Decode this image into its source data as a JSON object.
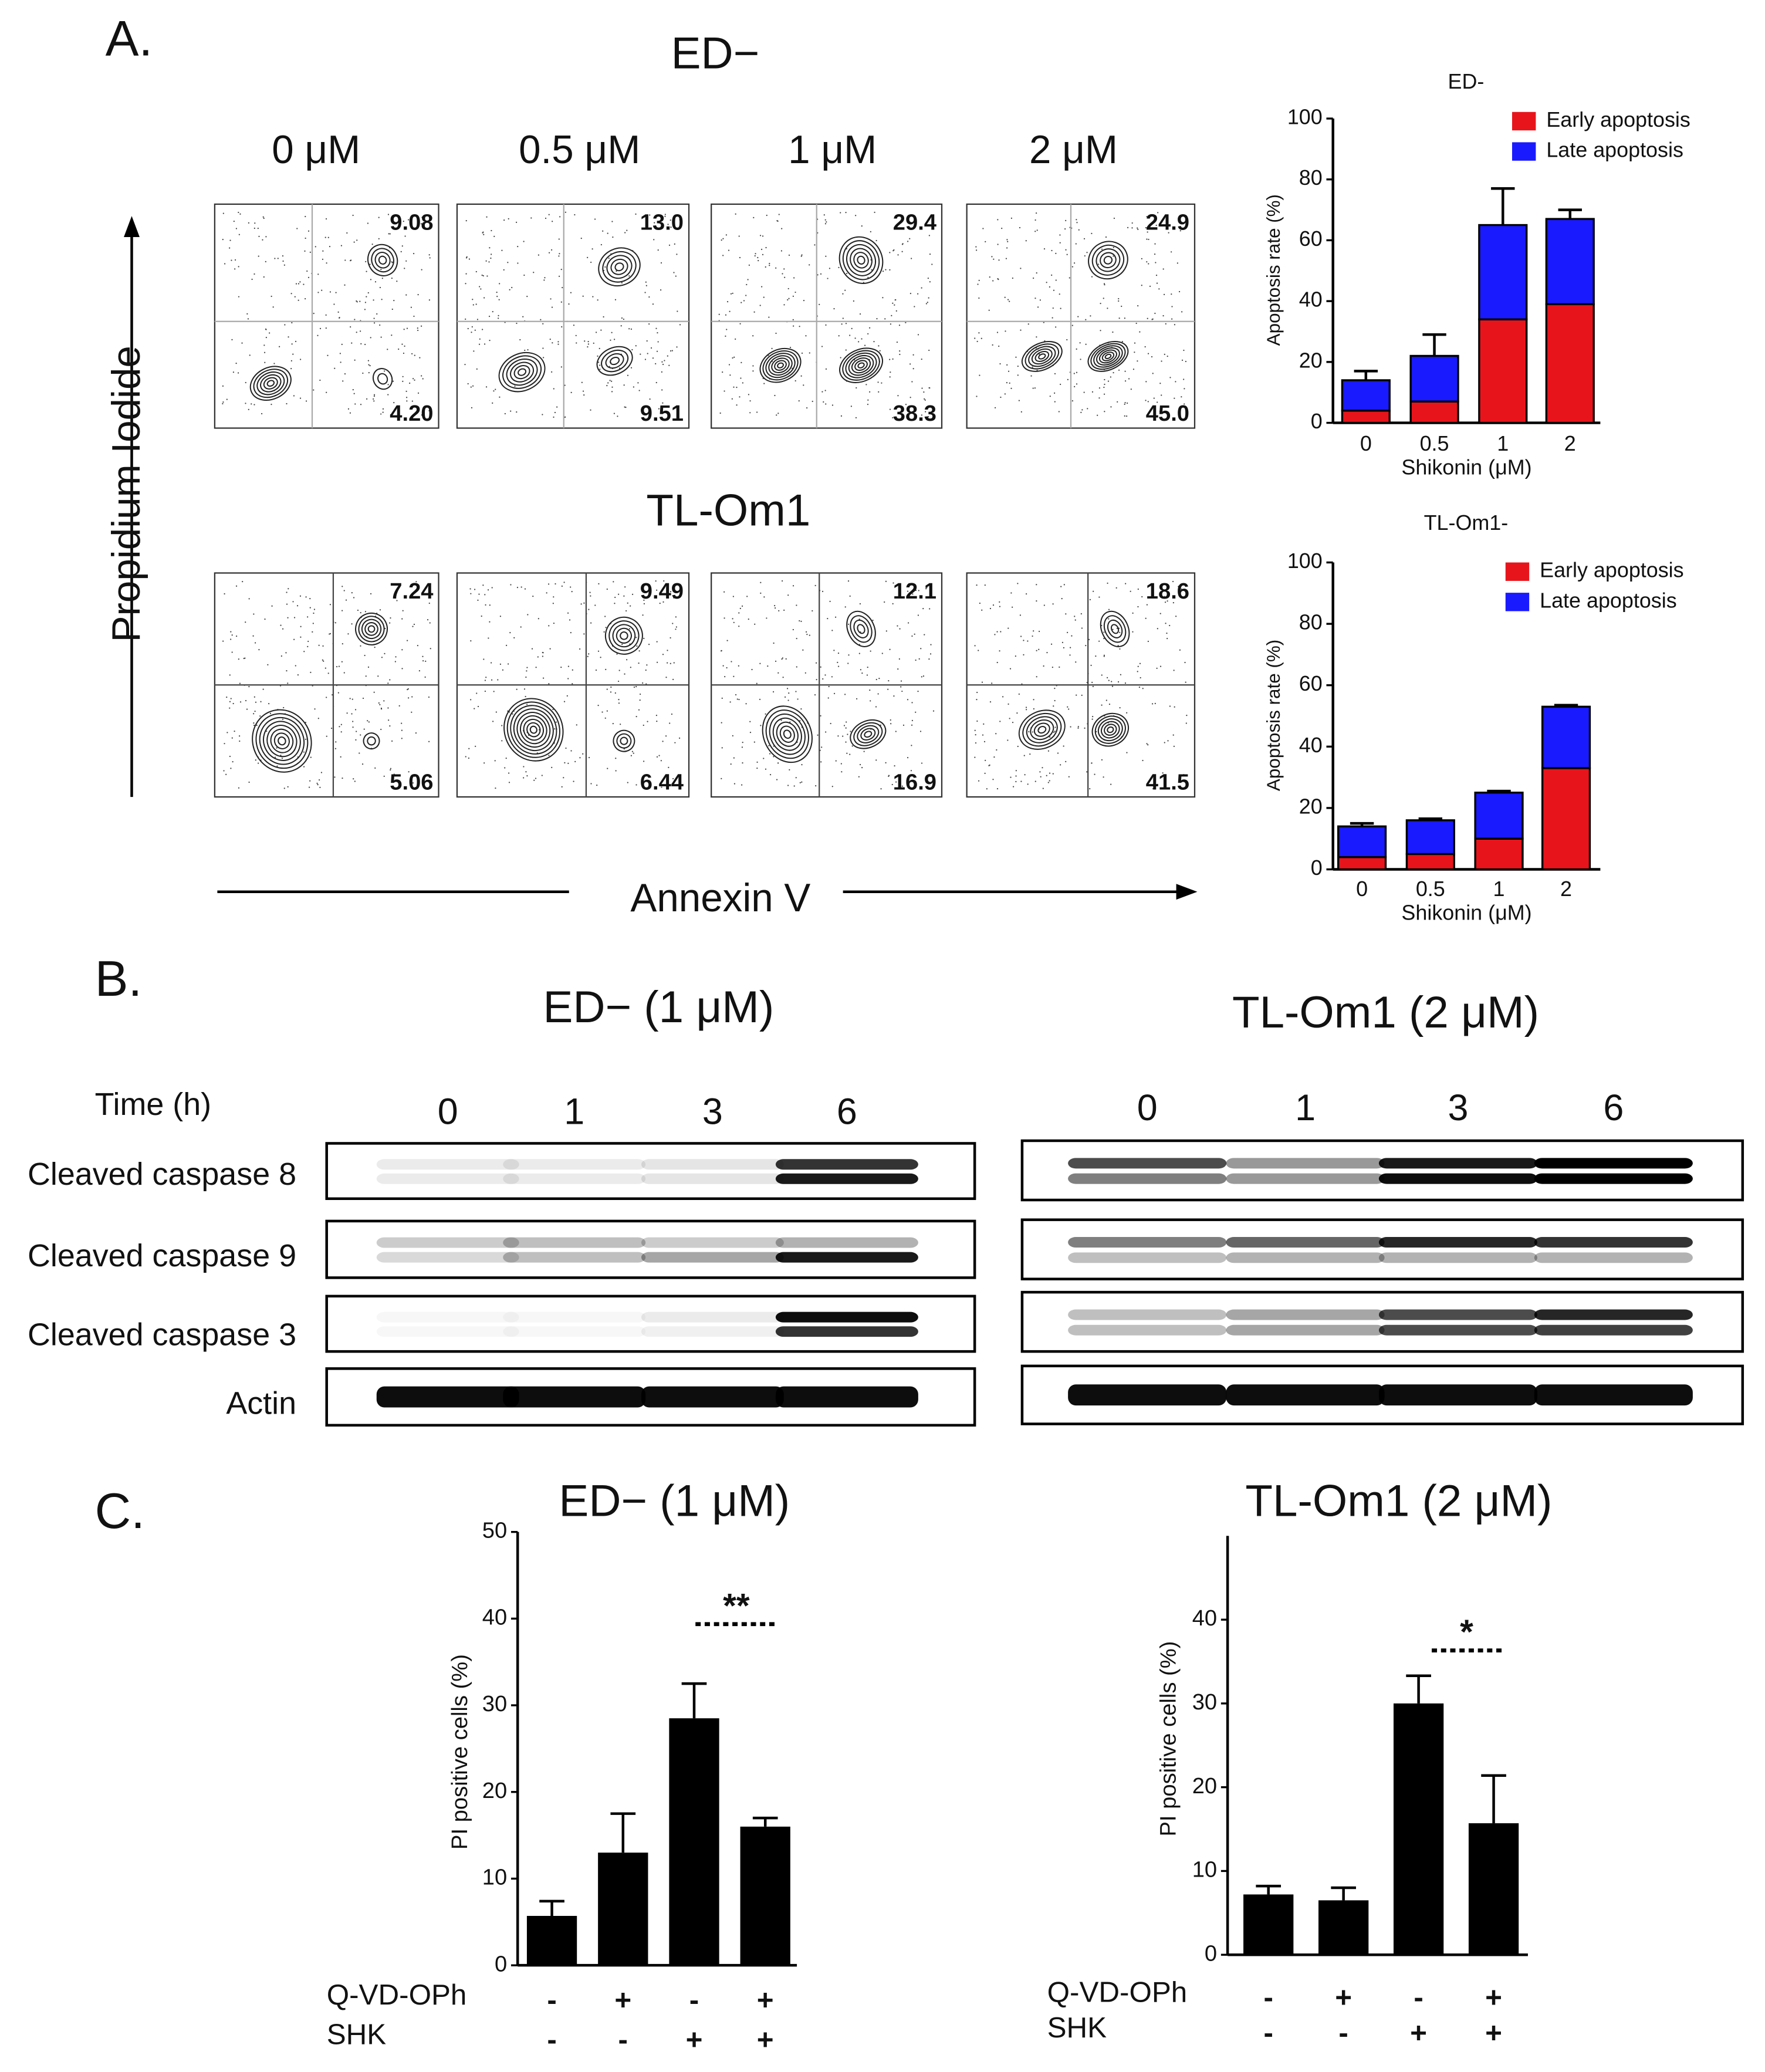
{
  "panels": [
    "A.",
    "B.",
    "C."
  ],
  "flow": {
    "x_axis": "Annexin V",
    "y_axis": "Propidium Iodide",
    "doses": [
      "0 μM",
      "0.5 μM",
      "1 μM",
      "2 μM"
    ],
    "rows": [
      {
        "title": "ED−",
        "upper_right": [
          "9.08",
          "13.0",
          "29.4",
          "24.9"
        ],
        "lower_right": [
          "4.20",
          "9.51",
          "38.3",
          "45.0"
        ]
      },
      {
        "title": "TL-Om1",
        "upper_right": [
          "7.24",
          "9.49",
          "12.1",
          "18.6"
        ],
        "lower_right": [
          "5.06",
          "6.44",
          "16.9",
          "41.5"
        ]
      }
    ]
  },
  "blots": {
    "time_label": "Time (h)",
    "rows": [
      "Cleaved caspase 8",
      "Cleaved caspase 9",
      "Cleaved caspase 3",
      "Actin"
    ],
    "groups": [
      {
        "title": "ED− (1 μM)",
        "times": [
          "0",
          "1",
          "3",
          "6"
        ]
      },
      {
        "title": "TL-Om1 (2 μM)",
        "times": [
          "0",
          "1",
          "3",
          "6"
        ]
      }
    ]
  },
  "chart_data": [
    {
      "type": "stacked_bar",
      "title": "ED-",
      "categories": [
        "0",
        "0.5",
        "1",
        "2"
      ],
      "x_label": "Shikonin (μM)",
      "y_label": "Apoptosis rate (%)",
      "series": [
        {
          "name": "Early apoptosis",
          "color": "#e8141b",
          "values": [
            4,
            7,
            34,
            39
          ],
          "errors": [
            1,
            2,
            5,
            5
          ]
        },
        {
          "name": "Late apoptosis",
          "color": "#1a1aff",
          "values": [
            10,
            15,
            31,
            28
          ],
          "errors": [
            3,
            7,
            12,
            3
          ]
        }
      ],
      "ylim": [
        0,
        100
      ],
      "yticks": [
        0,
        20,
        40,
        60,
        80,
        100
      ]
    },
    {
      "type": "stacked_bar",
      "title": "TL-Om1-",
      "categories": [
        "0",
        "0.5",
        "1",
        "2"
      ],
      "x_label": "Shikonin (μM)",
      "y_label": "Apoptosis rate (%)",
      "series": [
        {
          "name": "Early apoptosis",
          "color": "#e8141b",
          "values": [
            4,
            5,
            10,
            33
          ],
          "errors": [
            0.5,
            0.5,
            1,
            8
          ]
        },
        {
          "name": "Late apoptosis",
          "color": "#1a1aff",
          "values": [
            10,
            11,
            15,
            20
          ],
          "errors": [
            1,
            0.5,
            0.5,
            0.5
          ]
        }
      ],
      "ylim": [
        0,
        100
      ],
      "yticks": [
        0,
        20,
        40,
        60,
        80,
        100
      ]
    },
    {
      "type": "bar",
      "title": "ED− (1 μM)",
      "y_label": "PI positive cells (%)",
      "color": "#000000",
      "values": [
        5.7,
        13,
        28.5,
        16
      ],
      "errors": [
        1.7,
        4.5,
        4,
        1
      ],
      "treatments": [
        {
          "name": "Q-VD-OPh",
          "signs": [
            "-",
            "+",
            "-",
            "+"
          ]
        },
        {
          "name": "SHK",
          "signs": [
            "-",
            "-",
            "+",
            "+"
          ]
        }
      ],
      "annotation": "**",
      "ylim": [
        0,
        50
      ],
      "yticks": [
        0,
        10,
        20,
        30,
        40,
        50
      ]
    },
    {
      "type": "bar",
      "title": "TL-Om1 (2 μM)",
      "y_label": "PI positive cells (%)",
      "color": "#000000",
      "values": [
        7.2,
        6.5,
        30,
        15.7
      ],
      "errors": [
        1,
        1.5,
        3.3,
        5.7
      ],
      "treatments": [
        {
          "name": "Q-VD-OPh",
          "signs": [
            "-",
            "+",
            "-",
            "+"
          ]
        },
        {
          "name": "SHK",
          "signs": [
            "-",
            "-",
            "+",
            "+"
          ]
        }
      ],
      "annotation": "*",
      "ylim": [
        0,
        50
      ],
      "yticks": [
        0,
        10,
        20,
        30,
        40
      ]
    }
  ]
}
